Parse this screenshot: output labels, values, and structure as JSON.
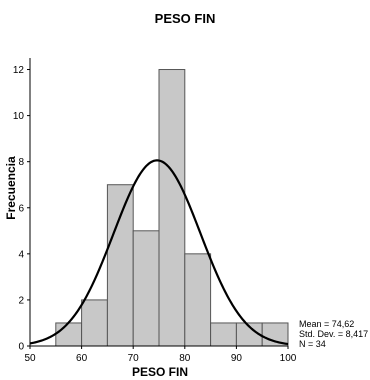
{
  "chart_data": {
    "type": "histogram",
    "title": "PESO FIN",
    "xlabel": "PESO FIN",
    "ylabel": "Frecuencia",
    "xlim": [
      50,
      100
    ],
    "ylim": [
      0,
      12.5
    ],
    "xticks": [
      "50",
      "60",
      "70",
      "80",
      "90",
      "100"
    ],
    "yticks": [
      "0",
      "2",
      "4",
      "6",
      "8",
      "10",
      "12"
    ],
    "bin_width": 5,
    "bins": [
      {
        "start": 55,
        "end": 60,
        "count": 1
      },
      {
        "start": 60,
        "end": 65,
        "count": 2
      },
      {
        "start": 65,
        "end": 70,
        "count": 7
      },
      {
        "start": 70,
        "end": 75,
        "count": 5
      },
      {
        "start": 75,
        "end": 80,
        "count": 12
      },
      {
        "start": 80,
        "end": 85,
        "count": 4
      },
      {
        "start": 85,
        "end": 90,
        "count": 1
      },
      {
        "start": 90,
        "end": 95,
        "count": 1
      },
      {
        "start": 95,
        "end": 100,
        "count": 1
      }
    ],
    "normal_curve": {
      "mean": 74.62,
      "sd": 8.417,
      "n": 34
    },
    "stats": {
      "mean": "Mean = 74,62",
      "std_dev": "Std. Dev. = 8,417",
      "n": "N = 34"
    },
    "colors": {
      "bar_fill": "#c8c8c8",
      "bar_stroke": "#555555",
      "curve": "#000000"
    }
  }
}
